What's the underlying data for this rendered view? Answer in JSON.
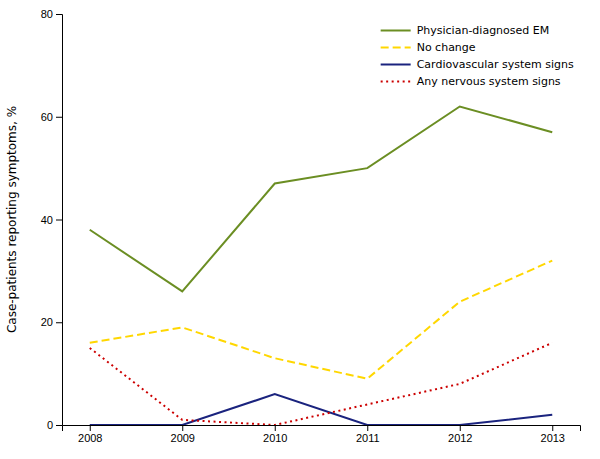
{
  "chart_data": {
    "type": "line",
    "ylabel": "Case-patients reporting symptoms, %",
    "x": [
      2008,
      2009,
      2010,
      2011,
      2012,
      2013
    ],
    "series": [
      {
        "name": "Physician-diagnosed EM",
        "color": "#6b8e23",
        "line_style": "solid",
        "values": [
          38,
          26,
          47,
          50,
          62,
          57
        ]
      },
      {
        "name": "No change",
        "color": "#ffd700",
        "line_style": "dashed",
        "values": [
          16,
          19,
          13,
          9,
          24,
          32
        ]
      },
      {
        "name": "Cardiovascular system signs",
        "color": "#1a237e",
        "line_style": "solid",
        "values": [
          0,
          0,
          6,
          0,
          0,
          2
        ]
      },
      {
        "name": "Any nervous system signs",
        "color": "#cc0000",
        "line_style": "dotted",
        "values": [
          15,
          1,
          0,
          4,
          8,
          16
        ]
      }
    ],
    "xlim": [
      2007.7,
      2013.3
    ],
    "xticks": [
      2008,
      2009,
      2010,
      2011,
      2012,
      2013
    ],
    "ylim": [
      0,
      80
    ],
    "yticks": [
      0,
      20,
      40,
      60,
      80
    ],
    "legend": "upper right",
    "grid": false
  }
}
